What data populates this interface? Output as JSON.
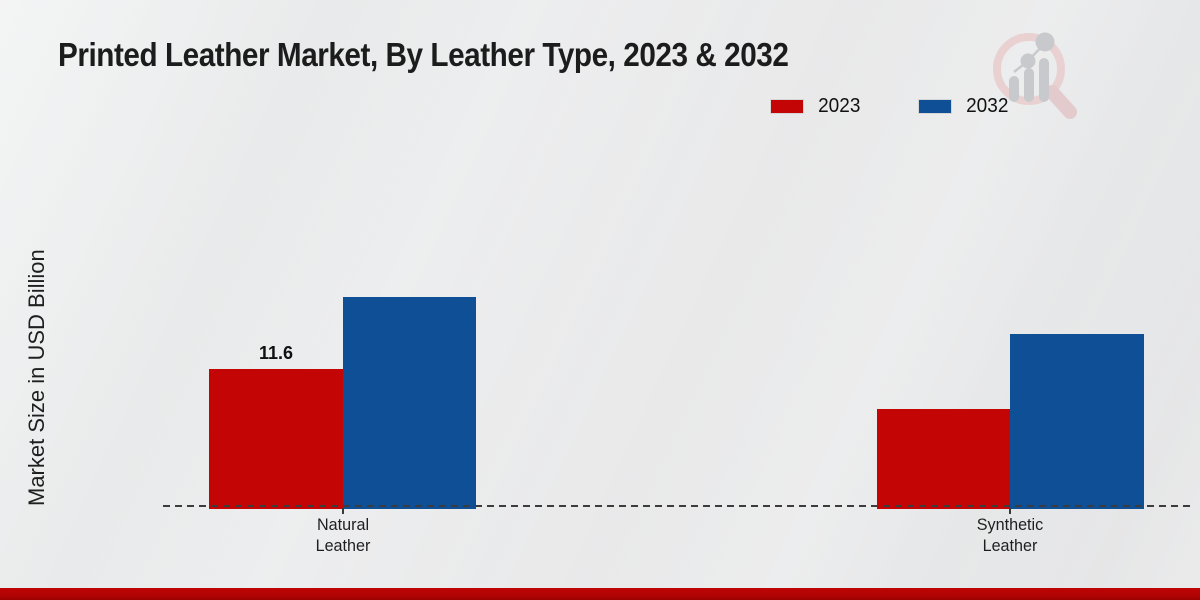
{
  "title": "Printed Leather Market, By Leather Type, 2023 & 2032",
  "ylabel": "Market Size in USD Billion",
  "legend": [
    {
      "label": "2023",
      "color": "#c40505"
    },
    {
      "label": "2032",
      "color": "#0f4f96"
    }
  ],
  "chart_data": {
    "type": "bar",
    "title": "Printed Leather Market, By Leather Type, 2023 & 2032",
    "categories": [
      "Natural Leather",
      "Synthetic Leather"
    ],
    "series": [
      {
        "name": "2023",
        "color": "#c40505",
        "values": [
          11.6,
          8.3
        ]
      },
      {
        "name": "2032",
        "color": "#0f4f96",
        "values": [
          17.5,
          14.5
        ]
      }
    ],
    "data_labels": [
      {
        "series": "2023",
        "category": "Natural Leather",
        "text": "11.6"
      }
    ],
    "xlabel": "",
    "ylabel": "Market Size in USD Billion",
    "ylim": [
      0,
      20
    ],
    "grid": false,
    "legend_position": "top-right",
    "baseline_style": "dashed"
  },
  "watermark": {
    "name": "magnifier-bar-chart-logo"
  },
  "colors": {
    "background": "#e9eaeb",
    "bottom_stripe": "#b30404",
    "axis_dash": "#3c3c3c",
    "title_text": "#1c1c1c"
  }
}
